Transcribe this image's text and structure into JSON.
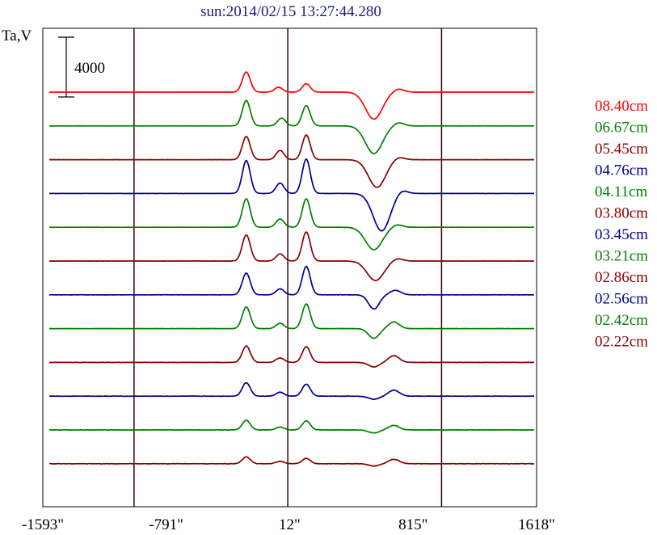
{
  "chart_data": {
    "type": "line",
    "title": "sun:2014/02/15 13:27:44.280",
    "ylabel": "Ta,V",
    "scale_bar_label": "4000",
    "scale_bar_value": 4000,
    "x_tick_labels": [
      "-1593\"",
      "-791\"",
      "12\"",
      "815\"",
      "1618\""
    ],
    "x_ticks": [
      -1593,
      -791,
      12,
      815,
      1618
    ],
    "xlim": [
      -1593,
      1618
    ],
    "vertical_markers": [
      -1000,
      0,
      1000
    ],
    "colors": {
      "title": "#1a1a80",
      "red": "#ff0000",
      "green": "#008000",
      "darkred": "#8b0000",
      "blue": "#000090",
      "marker": "#3a0000"
    },
    "series": [
      {
        "name": "08.40cm",
        "color": "#ff0000",
        "amp": 1.0,
        "noise": 0.15,
        "peaks": [
          [
            -270,
            1350
          ],
          [
            -60,
            330
          ],
          [
            120,
            560
          ],
          [
            560,
            -1800
          ],
          [
            720,
            220
          ]
        ]
      },
      {
        "name": "06.67cm",
        "color": "#008000",
        "amp": 1.0,
        "noise": 0.2,
        "peaks": [
          [
            -270,
            1700
          ],
          [
            -40,
            520
          ],
          [
            120,
            1350
          ],
          [
            560,
            -1850
          ],
          [
            720,
            220
          ]
        ]
      },
      {
        "name": "05.45cm",
        "color": "#8b0000",
        "amp": 1.0,
        "noise": 0.2,
        "peaks": [
          [
            -270,
            1550
          ],
          [
            -50,
            620
          ],
          [
            120,
            1650
          ],
          [
            580,
            -1850
          ],
          [
            720,
            180
          ]
        ]
      },
      {
        "name": "04.76cm",
        "color": "#000090",
        "amp": 1.0,
        "noise": 0.3,
        "peaks": [
          [
            -270,
            2200
          ],
          [
            -50,
            700
          ],
          [
            120,
            2300
          ],
          [
            610,
            -2500
          ],
          [
            740,
            250
          ]
        ]
      },
      {
        "name": "04.11cm",
        "color": "#008000",
        "amp": 1.0,
        "noise": 0.25,
        "peaks": [
          [
            -270,
            1900
          ],
          [
            -50,
            550
          ],
          [
            120,
            1900
          ],
          [
            560,
            -1500
          ],
          [
            710,
            180
          ]
        ]
      },
      {
        "name": "03.80cm",
        "color": "#8b0000",
        "amp": 1.0,
        "noise": 0.25,
        "peaks": [
          [
            -270,
            1750
          ],
          [
            -50,
            480
          ],
          [
            120,
            1950
          ],
          [
            570,
            -1300
          ],
          [
            710,
            180
          ]
        ]
      },
      {
        "name": "03.45cm",
        "color": "#000090",
        "amp": 1.0,
        "noise": 0.3,
        "peaks": [
          [
            -270,
            1450
          ],
          [
            -50,
            400
          ],
          [
            120,
            1900
          ],
          [
            560,
            -950
          ],
          [
            700,
            300
          ]
        ]
      },
      {
        "name": "03.21cm",
        "color": "#008000",
        "amp": 1.0,
        "noise": 0.3,
        "peaks": [
          [
            -270,
            1450
          ],
          [
            -50,
            350
          ],
          [
            120,
            1650
          ],
          [
            560,
            -650
          ],
          [
            690,
            450
          ]
        ]
      },
      {
        "name": "02.86cm",
        "color": "#8b0000",
        "amp": 1.0,
        "noise": 0.5,
        "peaks": [
          [
            -270,
            1100
          ],
          [
            -50,
            300
          ],
          [
            120,
            1050
          ],
          [
            560,
            -300
          ],
          [
            690,
            450
          ]
        ]
      },
      {
        "name": "02.56cm",
        "color": "#000090",
        "amp": 1.0,
        "noise": 0.6,
        "peaks": [
          [
            -270,
            900
          ],
          [
            -50,
            260
          ],
          [
            120,
            800
          ],
          [
            560,
            -200
          ],
          [
            690,
            400
          ]
        ]
      },
      {
        "name": "02.42cm",
        "color": "#008000",
        "amp": 1.0,
        "noise": 0.6,
        "peaks": [
          [
            -270,
            650
          ],
          [
            -50,
            190
          ],
          [
            120,
            600
          ],
          [
            560,
            -200
          ],
          [
            690,
            300
          ]
        ]
      },
      {
        "name": "02.22cm",
        "color": "#8b0000",
        "amp": 1.0,
        "noise": 0.7,
        "peaks": [
          [
            -270,
            450
          ],
          [
            -50,
            160
          ],
          [
            120,
            360
          ],
          [
            560,
            -150
          ],
          [
            690,
            300
          ]
        ]
      }
    ]
  }
}
